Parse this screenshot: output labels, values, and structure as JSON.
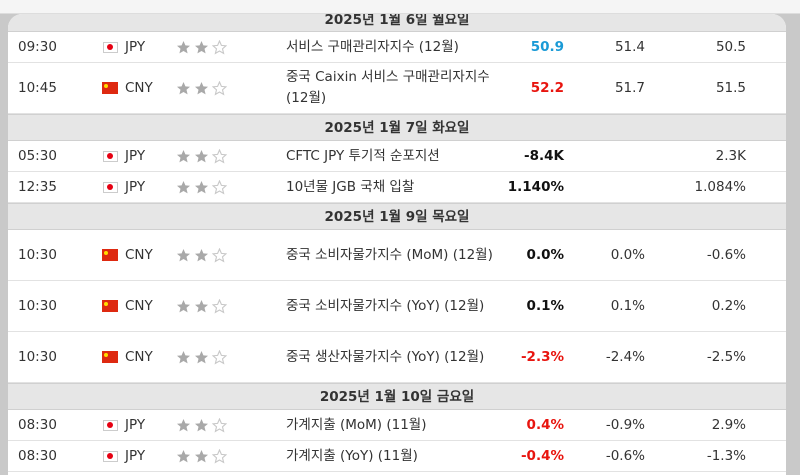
{
  "days": [
    {
      "header": "2025년 1월 6일 월요일",
      "rows": [
        {
          "time": "09:30",
          "currency": "JPY",
          "flag": "japan-flag",
          "importance": 2,
          "event": "서비스 구매관리자지수 (12월)",
          "actual": "50.9",
          "actual_color": "#1a9ad6",
          "forecast": "51.4",
          "previous": "50.5",
          "tall": false
        },
        {
          "time": "10:45",
          "currency": "CNY",
          "flag": "china-flag",
          "importance": 2,
          "event": "중국 Caixin 서비스 구매관리자지수 (12월)",
          "actual": "52.2",
          "actual_color": "#e8150f",
          "forecast": "51.7",
          "previous": "51.5",
          "tall": true
        }
      ]
    },
    {
      "header": "2025년 1월 7일 화요일",
      "rows": [
        {
          "time": "05:30",
          "currency": "JPY",
          "flag": "japan-flag",
          "importance": 2,
          "event": "CFTC JPY 투기적 순포지션",
          "actual": "-8.4K",
          "actual_color": "#111111",
          "forecast": "",
          "previous": "2.3K",
          "tall": false
        },
        {
          "time": "12:35",
          "currency": "JPY",
          "flag": "japan-flag",
          "importance": 2,
          "event": "10년물 JGB 국채 입찰",
          "actual": "1.140%",
          "actual_color": "#111111",
          "forecast": "",
          "previous": "1.084%",
          "tall": false
        }
      ]
    },
    {
      "header": "2025년 1월 9일 목요일",
      "rows": [
        {
          "time": "10:30",
          "currency": "CNY",
          "flag": "china-flag",
          "importance": 2,
          "event": "중국 소비자물가지수 (MoM) (12월)",
          "actual": "0.0%",
          "actual_color": "#111111",
          "forecast": "0.0%",
          "previous": "-0.6%",
          "tall": true
        },
        {
          "time": "10:30",
          "currency": "CNY",
          "flag": "china-flag",
          "importance": 2,
          "event": "중국 소비자물가지수 (YoY) (12월)",
          "actual": "0.1%",
          "actual_color": "#111111",
          "forecast": "0.1%",
          "previous": "0.2%",
          "tall": true
        },
        {
          "time": "10:30",
          "currency": "CNY",
          "flag": "china-flag",
          "importance": 2,
          "event": "중국 생산자물가지수 (YoY) (12월)",
          "actual": "-2.3%",
          "actual_color": "#e8150f",
          "forecast": "-2.4%",
          "previous": "-2.5%",
          "tall": true
        }
      ]
    },
    {
      "header": "2025년 1월 10일 금요일",
      "rows": [
        {
          "time": "08:30",
          "currency": "JPY",
          "flag": "japan-flag",
          "importance": 2,
          "event": "가계지출 (MoM) (11월)",
          "actual": "0.4%",
          "actual_color": "#e8150f",
          "forecast": "-0.9%",
          "previous": "2.9%",
          "tall": false
        },
        {
          "time": "08:30",
          "currency": "JPY",
          "flag": "japan-flag",
          "importance": 2,
          "event": "가계지출 (YoY) (11월)",
          "actual": "-0.4%",
          "actual_color": "#e8150f",
          "forecast": "-0.6%",
          "previous": "-1.3%",
          "tall": false
        }
      ]
    }
  ],
  "colors": {
    "star_filled": "#a9a9a9",
    "star_empty": "#c8c8c8",
    "header_bg": "#e6e6e6",
    "beat": "#1a9ad6",
    "miss": "#e8150f"
  },
  "max_importance": 3
}
